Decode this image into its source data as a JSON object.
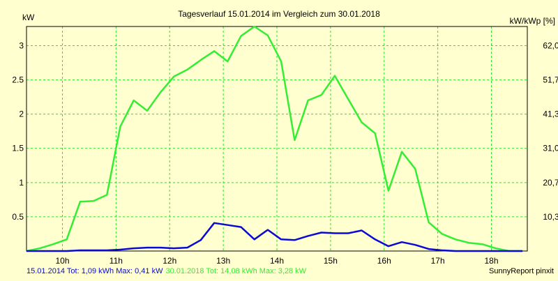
{
  "chart_data": {
    "type": "line",
    "title": "Tagesverlauf 15.01.2014 im Vergleich zum 30.01.2018",
    "ylabel_left": "kW",
    "ylabel_right": "kW/kWp [%]",
    "xticks": [
      "10h",
      "11h",
      "12h",
      "13h",
      "14h",
      "15h",
      "16h",
      "17h",
      "18h"
    ],
    "xtick_values": [
      10,
      11,
      12,
      13,
      14,
      15,
      16,
      17,
      18
    ],
    "xlim": [
      9.33,
      18.67
    ],
    "yticks_left": [
      "0.5",
      "1",
      "1.5",
      "2",
      "2.5",
      "3"
    ],
    "ytick_left_values": [
      0.5,
      1,
      1.5,
      2,
      2.5,
      3
    ],
    "yticks_right": [
      "10,3",
      "20,7",
      "31,0",
      "41,3",
      "51,7",
      "62,0"
    ],
    "ylim": [
      0,
      3.28
    ],
    "grid": true,
    "series": [
      {
        "name": "30.01.2018",
        "color": "#33ee33",
        "x": [
          9.33,
          9.58,
          9.83,
          10.08,
          10.33,
          10.58,
          10.83,
          11.08,
          11.33,
          11.58,
          11.83,
          12.08,
          12.33,
          12.58,
          12.83,
          13.08,
          13.33,
          13.58,
          13.83,
          14.08,
          14.33,
          14.58,
          14.83,
          15.08,
          15.33,
          15.58,
          15.83,
          16.08,
          16.33,
          16.58,
          16.83,
          17.08,
          17.33,
          17.58,
          17.83,
          18.08,
          18.33,
          18.58
        ],
        "values": [
          0.0,
          0.04,
          0.1,
          0.17,
          0.72,
          0.73,
          0.82,
          1.82,
          2.2,
          2.05,
          2.32,
          2.55,
          2.65,
          2.79,
          2.92,
          2.77,
          3.14,
          3.28,
          3.15,
          2.77,
          1.62,
          2.2,
          2.28,
          2.56,
          2.22,
          1.88,
          1.72,
          0.88,
          1.45,
          1.2,
          0.42,
          0.25,
          0.17,
          0.12,
          0.1,
          0.04,
          0.0,
          0.0
        ]
      },
      {
        "name": "15.01.2014",
        "color": "#0a0ad2",
        "x": [
          9.33,
          9.58,
          9.83,
          10.08,
          10.33,
          10.58,
          10.83,
          11.08,
          11.33,
          11.58,
          11.83,
          12.08,
          12.33,
          12.58,
          12.83,
          13.08,
          13.33,
          13.58,
          13.83,
          14.08,
          14.33,
          14.58,
          14.83,
          15.08,
          15.33,
          15.58,
          15.83,
          16.08,
          16.33,
          16.58,
          16.83,
          17.08,
          17.33,
          17.58,
          17.83,
          18.08,
          18.33,
          18.58
        ],
        "values": [
          0.0,
          0.0,
          0.0,
          0.0,
          0.01,
          0.01,
          0.01,
          0.02,
          0.04,
          0.05,
          0.05,
          0.04,
          0.05,
          0.16,
          0.41,
          0.38,
          0.35,
          0.17,
          0.31,
          0.17,
          0.16,
          0.22,
          0.27,
          0.26,
          0.26,
          0.3,
          0.17,
          0.07,
          0.13,
          0.09,
          0.03,
          0.01,
          0.0,
          0.0,
          0.0,
          0.0,
          0.0,
          0.0
        ]
      }
    ]
  },
  "footer": {
    "series1_text": "15.01.2014 Tot: 1,09 kWh Max: 0,41 kW",
    "series1_color": "#0a0ad2",
    "series2_text": "30.01.2018 Tot: 14,08 kWh Max: 3,28 kW",
    "series2_color": "#33ee33",
    "credit": "SunnyReport pinxit"
  }
}
